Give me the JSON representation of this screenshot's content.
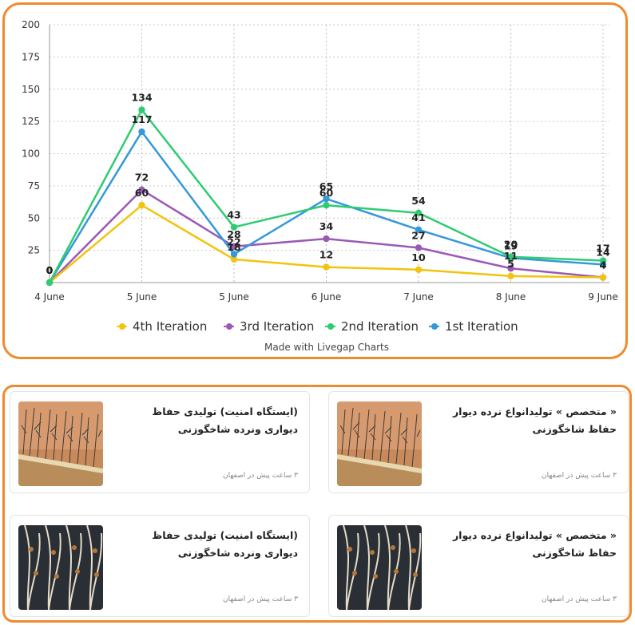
{
  "chart_data": {
    "type": "line",
    "categories": [
      "4 June",
      "5 June",
      "5 June",
      "6 June",
      "7 June",
      "8 June",
      "9 June"
    ],
    "ylim": [
      0,
      200
    ],
    "yticks": [
      25,
      50,
      75,
      100,
      125,
      150,
      175,
      200
    ],
    "grid": true,
    "legend_position": "bottom",
    "series": [
      {
        "name": "4th Iteration",
        "color": "#f1c40f",
        "values": [
          0,
          60,
          18,
          12,
          10,
          5,
          4
        ]
      },
      {
        "name": "3rd Iteration",
        "color": "#9b59b6",
        "values": [
          0,
          72,
          28,
          34,
          27,
          11,
          4
        ]
      },
      {
        "name": "2nd Iteration",
        "color": "#2ecc71",
        "values": [
          0,
          134,
          43,
          60,
          54,
          20,
          17
        ]
      },
      {
        "name": "1st Iteration",
        "color": "#3498db",
        "values": [
          0,
          117,
          22,
          65,
          41,
          19,
          14
        ]
      }
    ],
    "footer": "Made with Livegap Charts"
  },
  "listings": [
    {
      "title": "« متخصص » تولیدانواع نرده دیوار حفاظ شاخگوزنی",
      "meta": "۳ ساعت پیش در اصفهان",
      "image": "fence-wall-icon"
    },
    {
      "title": "(ایستگاه امنیت) تولیدی حفاظ دیواری ونرده شاخگوزنی",
      "meta": "۳ ساعت پیش در اصفهان",
      "image": "fence-wall-icon"
    },
    {
      "title": "« متخصص » تولیدانواع نرده دیوار حفاظ شاخگوزنی",
      "meta": "۳ ساعت پیش در اصفهان",
      "image": "antler-fence-icon"
    },
    {
      "title": "(ایستگاه امنیت) تولیدی حفاظ دیواری ونرده شاخگوزنی",
      "meta": "۳ ساعت پیش در اصفهان",
      "image": "antler-fence-icon"
    }
  ]
}
